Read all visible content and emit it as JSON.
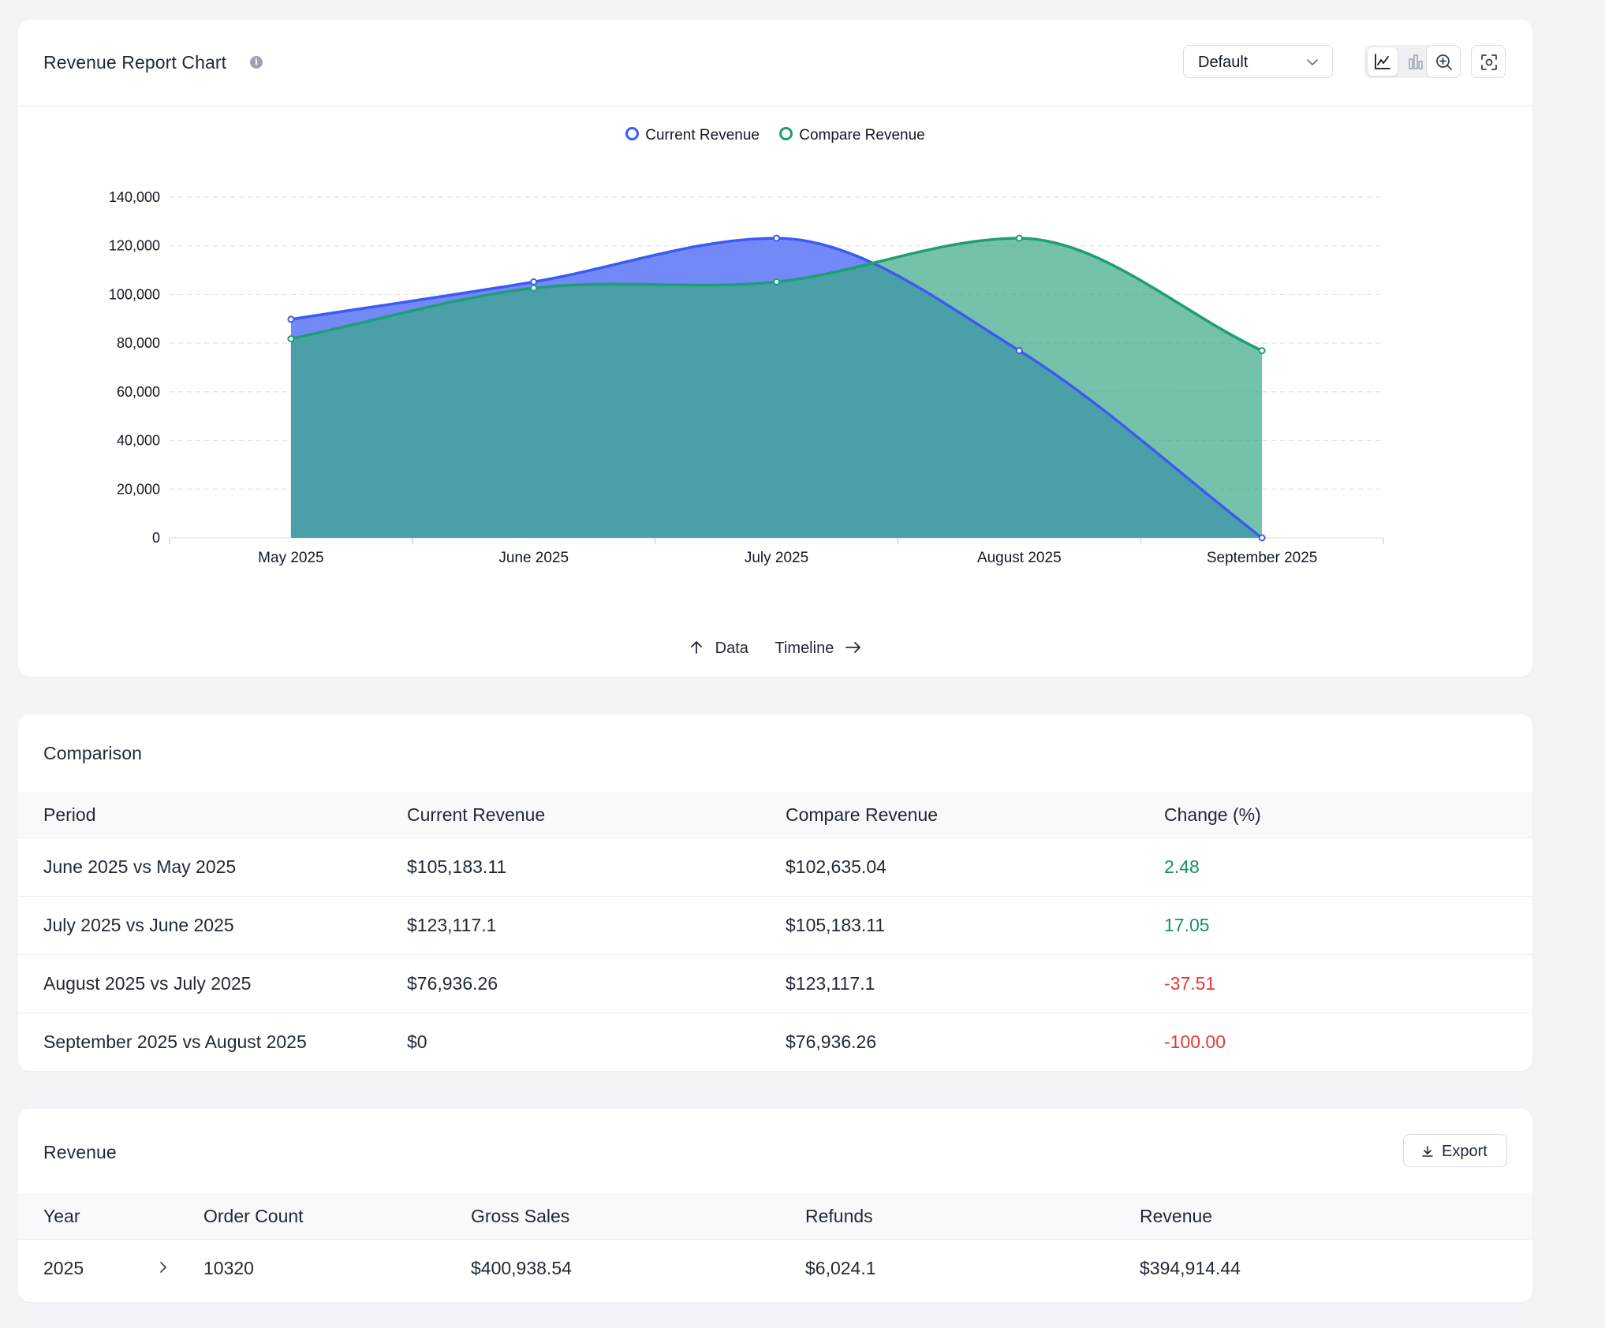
{
  "chart_card": {
    "title": "Revenue Report Chart",
    "view_select": "Default",
    "icons": {
      "info": "info-icon",
      "line_toggle": "line-chart-icon",
      "bar_toggle": "bar-chart-icon",
      "zoom": "zoom-in-icon",
      "screenshot": "capture-icon",
      "select_chevron": "chevron-down-icon"
    },
    "footer": {
      "data_label": "Data",
      "timeline_label": "Timeline"
    }
  },
  "chart_data": {
    "type": "area",
    "categories": [
      "May 2025",
      "June 2025",
      "July 2025",
      "August 2025",
      "September 2025"
    ],
    "series": [
      {
        "name": "Current Revenue",
        "color": "#3b5bf5",
        "values": [
          89800,
          105183.11,
          123117.1,
          76936.26,
          0
        ]
      },
      {
        "name": "Compare Revenue",
        "color": "#1e9e74",
        "values": [
          81800,
          102635.04,
          105183.11,
          123117.1,
          76936.26
        ]
      }
    ],
    "ylim": [
      0,
      140000
    ],
    "yticks": [
      "0",
      "20,000",
      "40,000",
      "60,000",
      "80,000",
      "100,000",
      "120,000",
      "140,000"
    ],
    "grid": true,
    "legend": "top-center"
  },
  "comparison": {
    "title": "Comparison",
    "columns": [
      "Period",
      "Current Revenue",
      "Compare Revenue",
      "Change (%)"
    ],
    "rows": [
      {
        "period": "June 2025 vs May 2025",
        "current": "$105,183.11",
        "compare": "$102,635.04",
        "change": "2.48",
        "trend": "up"
      },
      {
        "period": "July 2025 vs June 2025",
        "current": "$123,117.1",
        "compare": "$105,183.11",
        "change": "17.05",
        "trend": "up"
      },
      {
        "period": "August 2025 vs July 2025",
        "current": "$76,936.26",
        "compare": "$123,117.1",
        "change": "-37.51",
        "trend": "down"
      },
      {
        "period": "September 2025 vs August 2025",
        "current": "$0",
        "compare": "$76,936.26",
        "change": "-100.00",
        "trend": "down"
      }
    ]
  },
  "revenue": {
    "title": "Revenue",
    "export_label": "Export",
    "columns": [
      "Year",
      "Order Count",
      "Gross Sales",
      "Refunds",
      "Revenue"
    ],
    "rows": [
      {
        "year": "2025",
        "order_count": "10320",
        "gross_sales": "$400,938.54",
        "refunds": "$6,024.1",
        "revenue": "$394,914.44"
      }
    ]
  },
  "colors": {
    "current": "#3b5bf5",
    "compare": "#1e9e74",
    "positive": "#17915f",
    "negative": "#e53935"
  }
}
